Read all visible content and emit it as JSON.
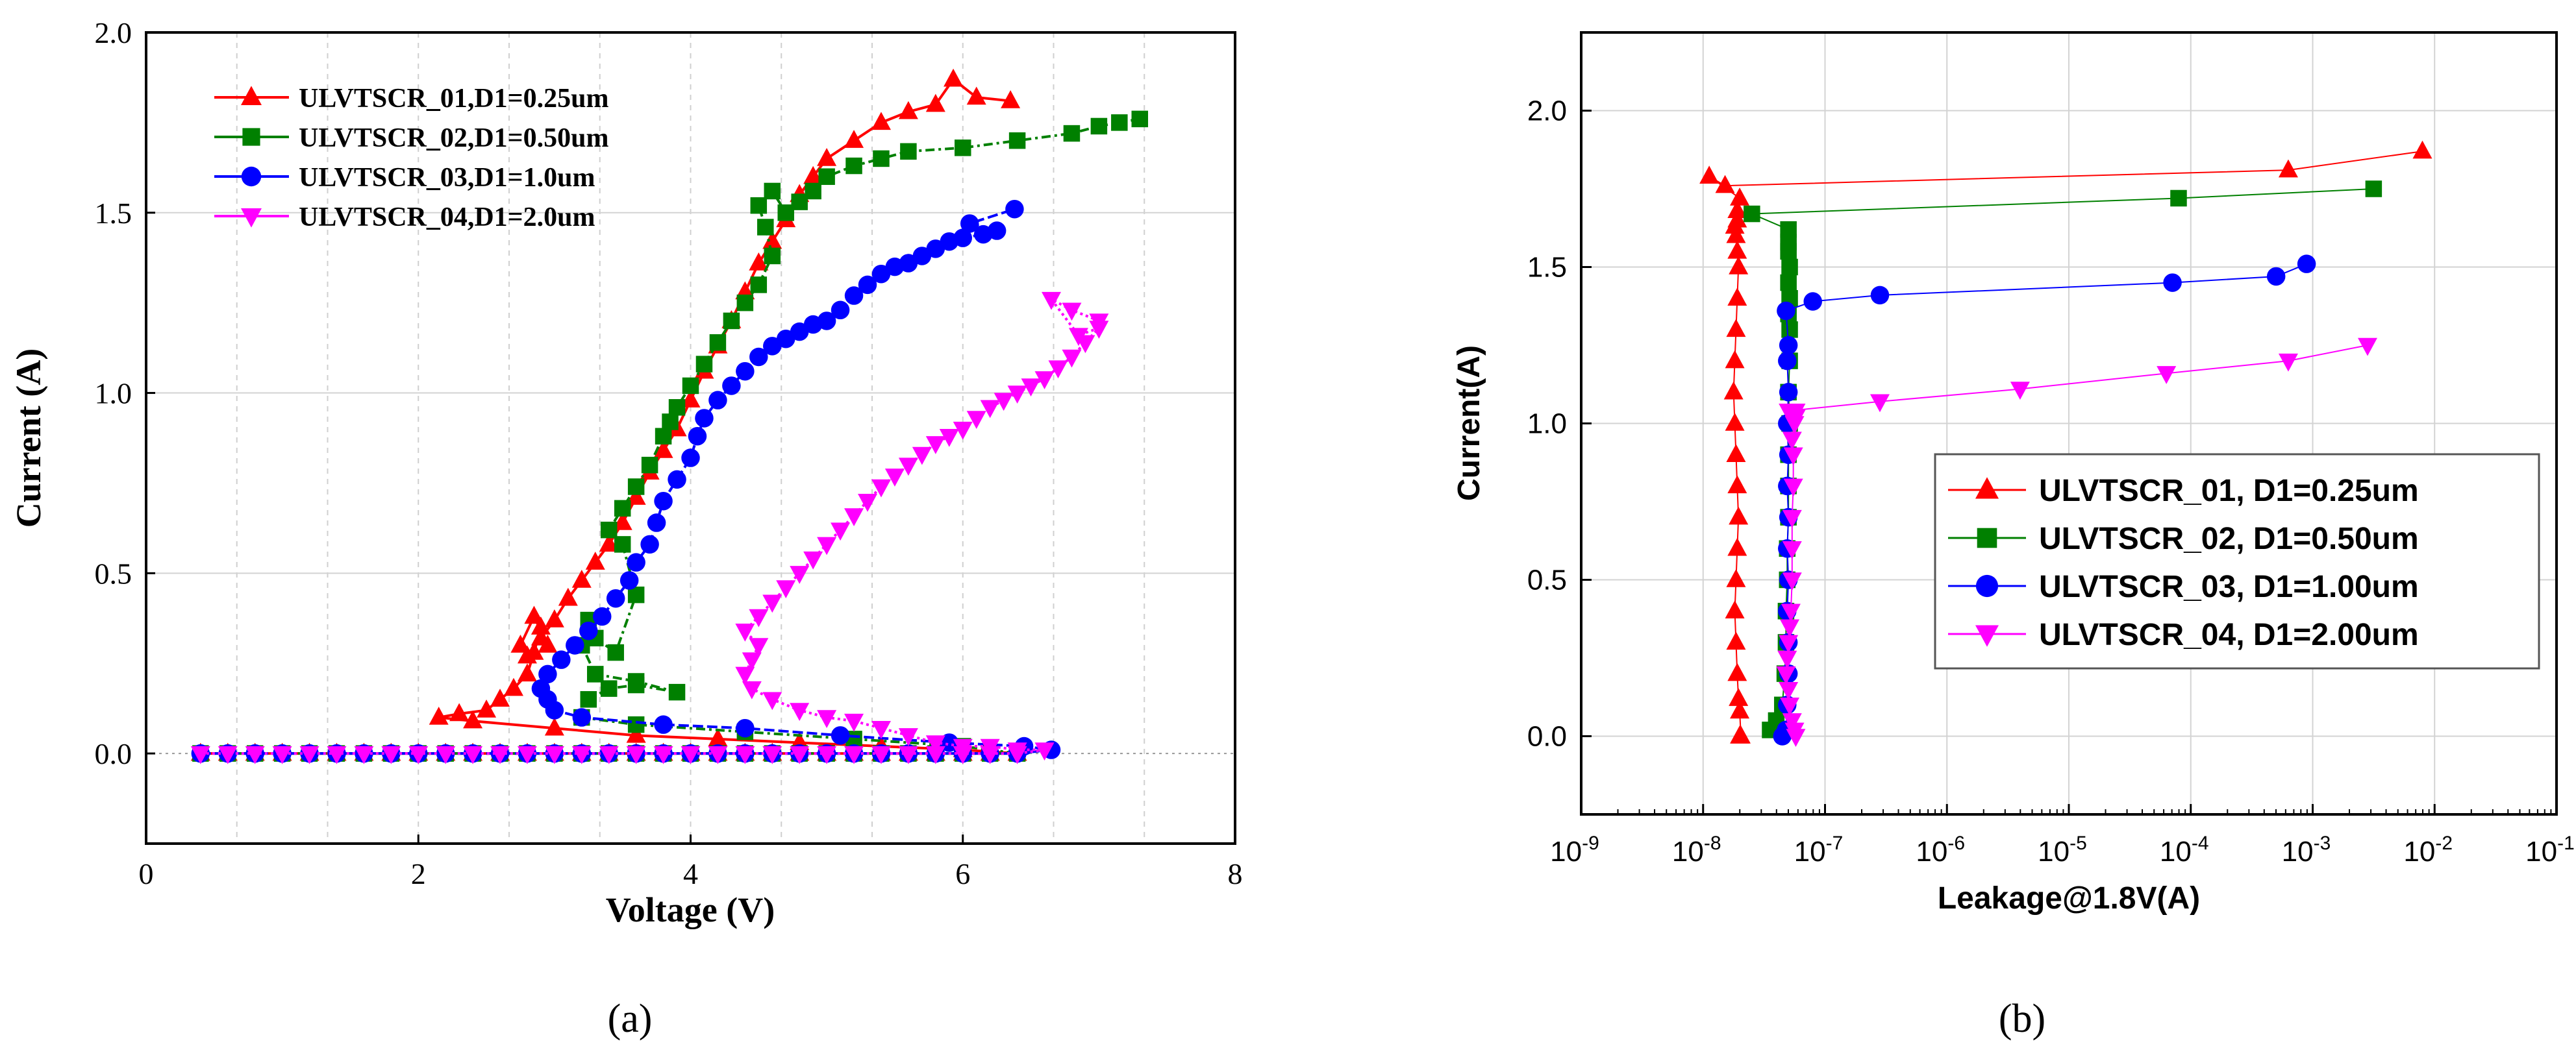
{
  "figure": {
    "panel_labels": [
      "(a)",
      "(b)"
    ]
  },
  "colors": {
    "series": [
      "#ff0000",
      "#008000",
      "#0000ff",
      "#ff00ff"
    ]
  },
  "chart_data": [
    {
      "type": "line",
      "panel": "(a)",
      "title": "",
      "xlabel": "Voltage (V)",
      "ylabel": "Current (A)",
      "xlim": [
        0,
        8
      ],
      "ylim": [
        -0.25,
        2.0
      ],
      "xticks": [
        0,
        2,
        4,
        6,
        8
      ],
      "yticks": [
        0.0,
        0.5,
        1.0,
        1.5,
        2.0
      ],
      "xtick_labels": [
        "0",
        "2",
        "4",
        "6",
        "8"
      ],
      "ytick_labels": [
        "0.0",
        "0.5",
        "1.0",
        "1.5",
        "2.0"
      ],
      "legend_position": "top-left",
      "series": [
        {
          "name": "ULVTSCR_01,D1=0.25um",
          "marker": "triangle-up",
          "x": [
            0.4,
            0.6,
            0.8,
            1.0,
            1.2,
            1.4,
            1.6,
            1.8,
            2.0,
            2.2,
            2.4,
            2.6,
            2.8,
            3.0,
            3.2,
            3.4,
            3.6,
            3.8,
            4.0,
            4.2,
            4.4,
            4.6,
            4.8,
            5.0,
            5.2,
            5.4,
            5.6,
            5.8,
            6.0,
            6.2,
            6.4,
            6.0,
            5.4,
            4.8,
            4.2,
            3.6,
            3.0,
            2.4,
            2.15,
            2.3,
            2.5,
            2.6,
            2.7,
            2.8,
            2.85,
            2.9,
            2.95,
            2.85,
            2.75,
            2.8,
            2.9,
            3.0,
            3.1,
            3.2,
            3.3,
            3.4,
            3.5,
            3.6,
            3.7,
            3.8,
            3.9,
            4.0,
            4.1,
            4.2,
            4.3,
            4.4,
            4.5,
            4.6,
            4.7,
            4.8,
            4.9,
            5.0,
            5.2,
            5.4,
            5.6,
            5.8,
            5.93,
            6.1,
            6.35
          ],
          "y": [
            0,
            0,
            0,
            0,
            0,
            0,
            0,
            0,
            0,
            0,
            0,
            0,
            0,
            0,
            0,
            0,
            0,
            0,
            0,
            0,
            0,
            0,
            0,
            0,
            0,
            0,
            0,
            0,
            0,
            0,
            0,
            0.01,
            0.02,
            0.03,
            0.04,
            0.05,
            0.07,
            0.09,
            0.1,
            0.11,
            0.12,
            0.15,
            0.18,
            0.22,
            0.28,
            0.35,
            0.3,
            0.38,
            0.3,
            0.27,
            0.32,
            0.37,
            0.43,
            0.48,
            0.53,
            0.58,
            0.64,
            0.71,
            0.78,
            0.84,
            0.9,
            0.98,
            1.06,
            1.13,
            1.2,
            1.28,
            1.36,
            1.42,
            1.48,
            1.55,
            1.6,
            1.65,
            1.7,
            1.75,
            1.78,
            1.8,
            1.87,
            1.82,
            1.81
          ]
        },
        {
          "name": "ULVTSCR_02,D1=0.50um",
          "marker": "square",
          "x": [
            0.4,
            0.6,
            0.8,
            1.0,
            1.2,
            1.4,
            1.6,
            1.8,
            2.0,
            2.2,
            2.4,
            2.6,
            2.8,
            3.0,
            3.2,
            3.4,
            3.6,
            3.8,
            4.0,
            4.2,
            4.4,
            4.6,
            4.8,
            5.0,
            5.2,
            5.4,
            5.6,
            5.8,
            6.0,
            6.2,
            6.4,
            6.0,
            5.2,
            4.4,
            3.6,
            3.2,
            3.25,
            3.4,
            3.6,
            3.9,
            3.6,
            3.3,
            3.2,
            3.25,
            3.3,
            3.45,
            3.6,
            3.5,
            3.4,
            3.5,
            3.6,
            3.7,
            3.8,
            3.85,
            3.9,
            4.0,
            4.1,
            4.2,
            4.3,
            4.4,
            4.5,
            4.6,
            4.55,
            4.5,
            4.6,
            4.7,
            4.8,
            4.9,
            5.0,
            5.2,
            5.4,
            5.6,
            6.0,
            6.4,
            6.8,
            7.0,
            7.15,
            7.3
          ],
          "y": [
            0,
            0,
            0,
            0,
            0,
            0,
            0,
            0,
            0,
            0,
            0,
            0,
            0,
            0,
            0,
            0,
            0,
            0,
            0,
            0,
            0,
            0,
            0,
            0,
            0,
            0,
            0,
            0,
            0,
            0,
            0,
            0.02,
            0.04,
            0.06,
            0.08,
            0.1,
            0.15,
            0.18,
            0.19,
            0.17,
            0.2,
            0.22,
            0.3,
            0.37,
            0.32,
            0.28,
            0.44,
            0.58,
            0.62,
            0.68,
            0.74,
            0.8,
            0.88,
            0.92,
            0.96,
            1.02,
            1.08,
            1.14,
            1.2,
            1.25,
            1.3,
            1.38,
            1.46,
            1.52,
            1.56,
            1.5,
            1.53,
            1.56,
            1.6,
            1.63,
            1.65,
            1.67,
            1.68,
            1.7,
            1.72,
            1.74,
            1.75,
            1.76
          ]
        },
        {
          "name": "ULVTSCR_03,D1=1.0um",
          "marker": "circle",
          "x": [
            0.4,
            0.6,
            0.8,
            1.0,
            1.2,
            1.4,
            1.6,
            1.8,
            2.0,
            2.2,
            2.4,
            2.6,
            2.8,
            3.0,
            3.2,
            3.4,
            3.6,
            3.8,
            4.0,
            4.2,
            4.4,
            4.6,
            4.8,
            5.0,
            5.2,
            5.4,
            5.6,
            5.8,
            6.0,
            6.2,
            6.4,
            6.65,
            6.45,
            5.9,
            5.1,
            4.4,
            3.8,
            3.2,
            3.0,
            2.95,
            2.9,
            2.95,
            3.05,
            3.15,
            3.25,
            3.35,
            3.45,
            3.55,
            3.6,
            3.7,
            3.75,
            3.8,
            3.9,
            4.0,
            4.05,
            4.1,
            4.2,
            4.3,
            4.4,
            4.5,
            4.6,
            4.7,
            4.8,
            4.9,
            5.0,
            5.1,
            5.2,
            5.3,
            5.4,
            5.5,
            5.6,
            5.7,
            5.8,
            5.9,
            6.0,
            6.15,
            6.25,
            6.05,
            6.38
          ],
          "y": [
            0,
            0,
            0,
            0,
            0,
            0,
            0,
            0,
            0,
            0,
            0,
            0,
            0,
            0,
            0,
            0,
            0,
            0,
            0,
            0,
            0,
            0,
            0,
            0,
            0,
            0,
            0,
            0,
            0,
            0,
            0,
            0.01,
            0.02,
            0.03,
            0.05,
            0.07,
            0.08,
            0.1,
            0.12,
            0.15,
            0.18,
            0.22,
            0.26,
            0.3,
            0.34,
            0.38,
            0.43,
            0.48,
            0.53,
            0.58,
            0.64,
            0.7,
            0.76,
            0.82,
            0.88,
            0.93,
            0.98,
            1.02,
            1.06,
            1.1,
            1.13,
            1.15,
            1.17,
            1.19,
            1.2,
            1.23,
            1.27,
            1.3,
            1.33,
            1.35,
            1.36,
            1.38,
            1.4,
            1.42,
            1.43,
            1.44,
            1.45,
            1.47,
            1.51
          ]
        },
        {
          "name": "ULVTSCR_04,D1=2.0um",
          "marker": "triangle-down",
          "x": [
            0.4,
            0.6,
            0.8,
            1.0,
            1.2,
            1.4,
            1.6,
            1.8,
            2.0,
            2.2,
            2.4,
            2.6,
            2.8,
            3.0,
            3.2,
            3.4,
            3.6,
            3.8,
            4.0,
            4.2,
            4.4,
            4.6,
            4.8,
            5.0,
            5.2,
            5.4,
            5.6,
            5.8,
            6.0,
            6.2,
            6.4,
            6.6,
            6.4,
            6.2,
            6.0,
            5.8,
            5.6,
            5.4,
            5.2,
            5.0,
            4.8,
            4.6,
            4.45,
            4.4,
            4.45,
            4.5,
            4.4,
            4.5,
            4.6,
            4.7,
            4.8,
            4.9,
            5.0,
            5.1,
            5.2,
            5.3,
            5.4,
            5.5,
            5.6,
            5.7,
            5.8,
            5.9,
            6.0,
            6.1,
            6.2,
            6.3,
            6.4,
            6.5,
            6.6,
            6.7,
            6.8,
            6.9,
            7.0,
            6.85,
            6.65,
            6.8,
            7.0
          ],
          "y": [
            0,
            0,
            0,
            0,
            0,
            0,
            0,
            0,
            0,
            0,
            0,
            0,
            0,
            0,
            0,
            0,
            0,
            0,
            0,
            0,
            0,
            0,
            0,
            0,
            0,
            0,
            0,
            0,
            0,
            0,
            0,
            0.01,
            0.01,
            0.02,
            0.02,
            0.03,
            0.05,
            0.07,
            0.09,
            0.1,
            0.12,
            0.15,
            0.18,
            0.22,
            0.26,
            0.3,
            0.34,
            0.38,
            0.42,
            0.46,
            0.5,
            0.54,
            0.58,
            0.62,
            0.66,
            0.7,
            0.74,
            0.77,
            0.8,
            0.83,
            0.86,
            0.88,
            0.9,
            0.93,
            0.96,
            0.98,
            1.0,
            1.02,
            1.04,
            1.07,
            1.1,
            1.14,
            1.18,
            1.16,
            1.26,
            1.23,
            1.2
          ]
        }
      ]
    },
    {
      "type": "line",
      "panel": "(b)",
      "title": "",
      "xlabel": "Leakage@1.8V(A)",
      "ylabel": "Current(A)",
      "xscale": "log",
      "xlim_exp": [
        -9,
        -1
      ],
      "ylim": [
        -0.25,
        2.25
      ],
      "xtick_exponents": [
        -9,
        -8,
        -7,
        -6,
        -5,
        -4,
        -3,
        -2,
        -1
      ],
      "xtick_base": "10",
      "xtick_sup": [
        "-9",
        "-8",
        "-7",
        "-6",
        "-5",
        "-4",
        "-3",
        "-2",
        "-1"
      ],
      "yticks": [
        0.0,
        0.5,
        1.0,
        1.5,
        2.0
      ],
      "ytick_labels": [
        "0.0",
        "0.5",
        "1.0",
        "1.5",
        "2.0"
      ],
      "legend_position": "right",
      "series": [
        {
          "name": "ULVTSCR_01, D1=0.25um",
          "marker": "triangle-up",
          "log_x": [
            -7.7,
            -7.69,
            -7.7,
            -7.71,
            -7.72,
            -7.73,
            -7.74,
            -7.73,
            -7.72,
            -7.71,
            -7.72,
            -7.73,
            -7.74,
            -7.75,
            -7.74,
            -7.73,
            -7.72,
            -7.71,
            -7.72,
            -7.73,
            -7.74,
            -7.72,
            -7.72,
            -7.7,
            -7.95,
            -7.82,
            -3.2,
            -2.1
          ],
          "y": [
            0.0,
            0.0,
            0.08,
            0.12,
            0.2,
            0.3,
            0.4,
            0.5,
            0.6,
            0.7,
            0.8,
            0.9,
            1.0,
            1.1,
            1.2,
            1.3,
            1.4,
            1.5,
            1.55,
            1.6,
            1.63,
            1.65,
            1.68,
            1.72,
            1.79,
            1.76,
            1.81,
            1.87
          ]
        },
        {
          "name": "ULVTSCR_02, D1=0.50um",
          "marker": "square",
          "log_x": [
            -7.45,
            -7.4,
            -7.35,
            -7.33,
            -7.32,
            -7.32,
            -7.31,
            -7.31,
            -7.3,
            -7.3,
            -7.3,
            -7.29,
            -7.3,
            -7.29,
            -7.29,
            -7.3,
            -7.29,
            -7.3,
            -7.29,
            -7.3,
            -7.3,
            -7.3,
            -7.6,
            -4.1,
            -2.5
          ],
          "y": [
            0.02,
            0.05,
            0.1,
            0.2,
            0.3,
            0.4,
            0.5,
            0.6,
            0.7,
            0.8,
            0.9,
            1.0,
            1.1,
            1.2,
            1.3,
            1.35,
            1.4,
            1.45,
            1.5,
            1.55,
            1.58,
            1.62,
            1.67,
            1.72,
            1.75
          ]
        },
        {
          "name": "ULVTSCR_03, D1=1.00um",
          "marker": "circle",
          "log_x": [
            -7.35,
            -7.32,
            -7.31,
            -7.3,
            -7.3,
            -7.31,
            -7.3,
            -7.31,
            -7.3,
            -7.31,
            -7.3,
            -7.31,
            -7.3,
            -7.31,
            -7.3,
            -7.32,
            -7.1,
            -6.55,
            -4.15,
            -3.3,
            -3.05
          ],
          "y": [
            0.0,
            0.02,
            0.1,
            0.2,
            0.3,
            0.4,
            0.5,
            0.6,
            0.7,
            0.8,
            0.9,
            1.0,
            1.1,
            1.2,
            1.25,
            1.36,
            1.39,
            1.41,
            1.45,
            1.47,
            1.51
          ]
        },
        {
          "name": "ULVTSCR_04, D1=2.00um",
          "marker": "triangle-down",
          "log_x": [
            -7.24,
            -7.25,
            -7.27,
            -7.29,
            -7.3,
            -7.32,
            -7.31,
            -7.3,
            -7.29,
            -7.28,
            -7.27,
            -7.27,
            -7.27,
            -7.26,
            -7.26,
            -7.27,
            -7.25,
            -7.24,
            -7.24,
            -7.3,
            -6.55,
            -5.4,
            -4.2,
            -3.2,
            -2.55
          ],
          "y": [
            0.0,
            0.02,
            0.05,
            0.1,
            0.15,
            0.2,
            0.25,
            0.3,
            0.35,
            0.4,
            0.5,
            0.6,
            0.7,
            0.8,
            0.9,
            0.95,
            1.0,
            1.02,
            1.04,
            1.04,
            1.07,
            1.11,
            1.16,
            1.2,
            1.25
          ]
        }
      ]
    }
  ]
}
